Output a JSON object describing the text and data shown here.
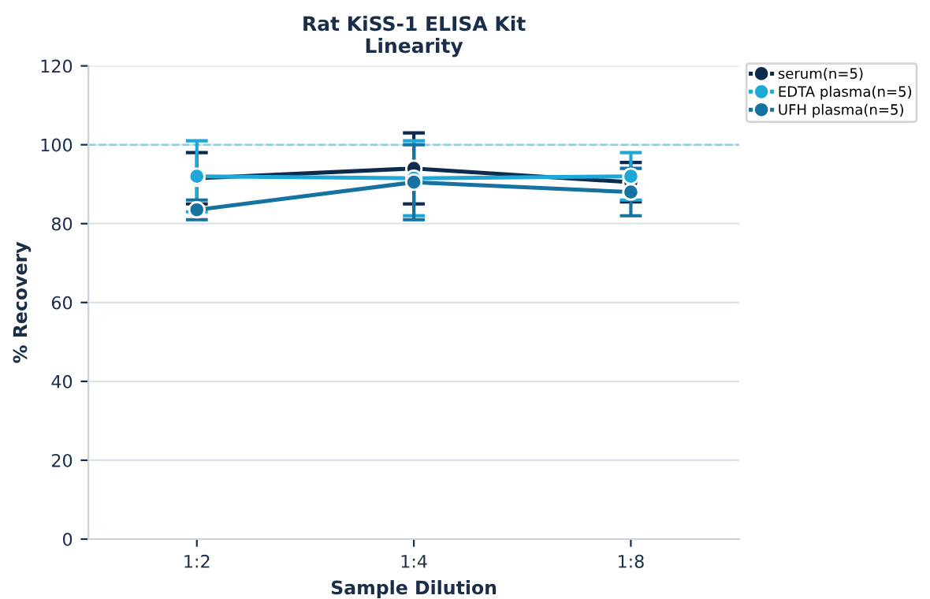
{
  "chart_data": {
    "type": "line",
    "title": "Rat KiSS-1 ELISA Kit\nLinearity",
    "xlabel": "Sample Dilution",
    "ylabel": "% Recovery",
    "categories": [
      "1:2",
      "1:4",
      "1:8"
    ],
    "series": [
      {
        "name": "serum(n=5)",
        "color": "#0d2b4e",
        "values": [
          91.5,
          94,
          90.5
        ],
        "errors": [
          6.5,
          9,
          5
        ]
      },
      {
        "name": "EDTA plasma(n=5)",
        "color": "#1ea8d8",
        "values": [
          92,
          91.5,
          92
        ],
        "errors": [
          9,
          9.5,
          6
        ]
      },
      {
        "name": "UFH plasma(n=5)",
        "color": "#1572a1",
        "values": [
          83.5,
          90.5,
          88
        ],
        "errors": [
          2.5,
          9.5,
          6
        ]
      }
    ],
    "ylim": [
      0,
      120
    ],
    "yticks": [
      0,
      20,
      40,
      60,
      80,
      100,
      120
    ],
    "grid": "y",
    "legend": "top right",
    "marker": "circle",
    "line_style": "solid",
    "ref_lines": [
      {
        "axis": "y",
        "value": 100,
        "label": null,
        "color": "#8fcde6",
        "line_style": "dashed"
      }
    ]
  }
}
